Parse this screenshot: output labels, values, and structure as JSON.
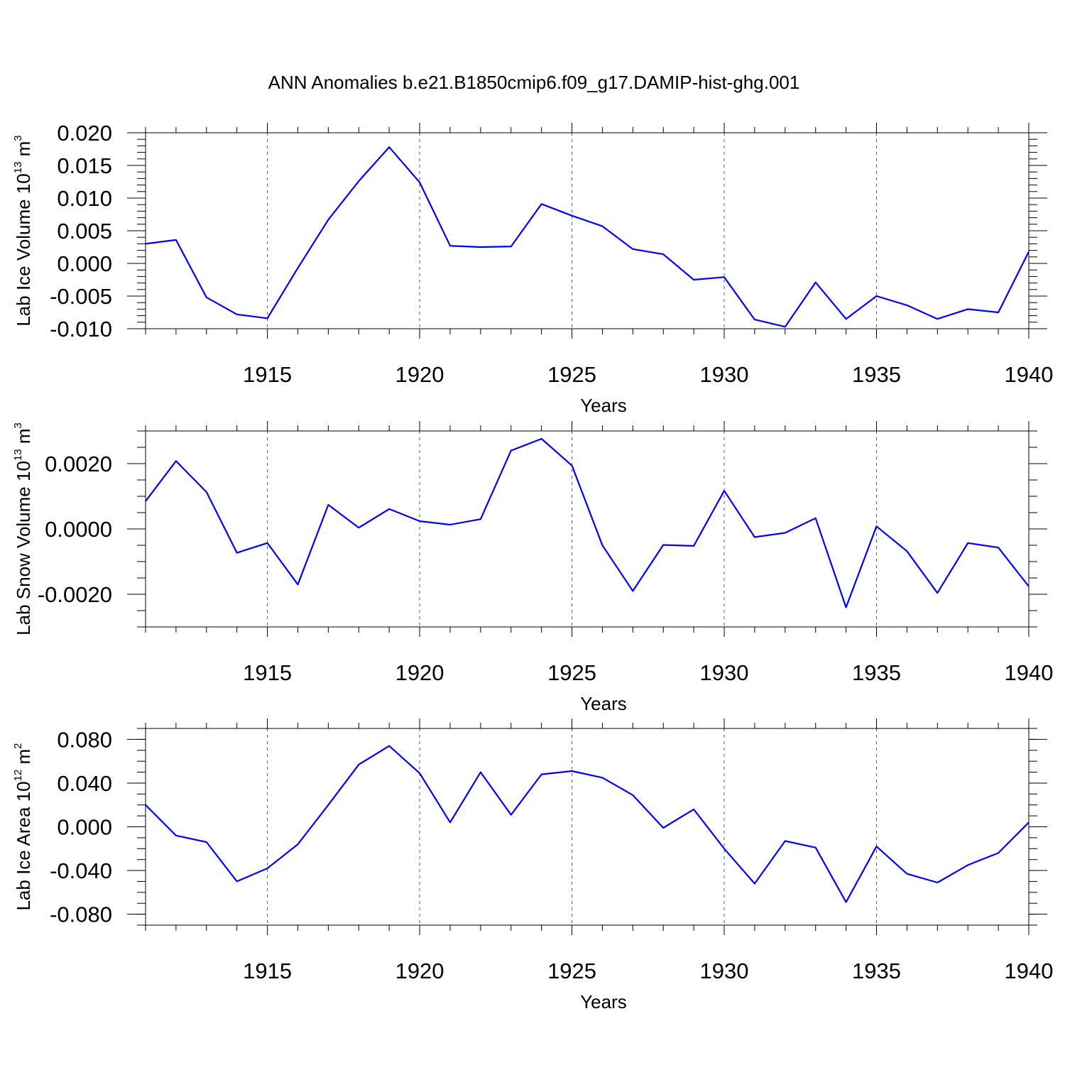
{
  "figure": {
    "title": "ANN Anomalies b.e21.B1850cmip6.f09_g17.DAMIP-hist-ghg.001"
  },
  "chart_data": [
    {
      "type": "line",
      "name": "lab-ice-volume",
      "ylabel": {
        "base": "Lab Ice Volume 10",
        "exp": "13",
        "unit": " m",
        "unit_exp": "3"
      },
      "xlabel": "Years",
      "xlim": [
        1911,
        1940
      ],
      "ylim": [
        -0.01,
        0.02
      ],
      "xticks": [
        1915,
        1920,
        1925,
        1930,
        1935,
        1940
      ],
      "xtick_labels": [
        "1915",
        "1920",
        "1925",
        "1930",
        "1935",
        "1940"
      ],
      "yticks": [
        -0.01,
        -0.005,
        0.0,
        0.005,
        0.01,
        0.015,
        0.02
      ],
      "ytick_labels": [
        "-0.010",
        "-0.005",
        "0.000",
        "0.005",
        "0.010",
        "0.015",
        "0.020"
      ],
      "yminor_step": 0.001,
      "line_color": "#0000ff",
      "x": [
        1911,
        1912,
        1913,
        1914,
        1915,
        1916,
        1917,
        1918,
        1919,
        1920,
        1921,
        1922,
        1923,
        1924,
        1925,
        1926,
        1927,
        1928,
        1929,
        1930,
        1931,
        1932,
        1933,
        1934,
        1935,
        1936,
        1937,
        1938,
        1939,
        1940
      ],
      "values": [
        0.003,
        0.0036,
        -0.0052,
        -0.0078,
        -0.0084,
        -0.0007,
        0.0067,
        0.0126,
        0.0178,
        0.0124,
        0.0027,
        0.0025,
        0.0026,
        0.0091,
        0.0073,
        0.0057,
        0.0022,
        0.0014,
        -0.0025,
        -0.0021,
        -0.0086,
        -0.0097,
        -0.0029,
        -0.0085,
        -0.005,
        -0.0064,
        -0.0085,
        -0.007,
        -0.0075,
        0.0018
      ]
    },
    {
      "type": "line",
      "name": "lab-snow-volume",
      "ylabel": {
        "base": "Lab Snow Volume 10",
        "exp": "13",
        "unit": " m",
        "unit_exp": "3"
      },
      "xlabel": "Years",
      "xlim": [
        1911,
        1940
      ],
      "ylim": [
        -0.003,
        0.003
      ],
      "xticks": [
        1915,
        1920,
        1925,
        1930,
        1935,
        1940
      ],
      "xtick_labels": [
        "1915",
        "1920",
        "1925",
        "1930",
        "1935",
        "1940"
      ],
      "yticks": [
        -0.002,
        0.0,
        0.002
      ],
      "ytick_labels": [
        "-0.0020",
        "0.0000",
        "0.0020"
      ],
      "yminor_step": 0.0005,
      "line_color": "#0000ff",
      "x": [
        1911,
        1912,
        1913,
        1914,
        1915,
        1916,
        1917,
        1918,
        1919,
        1920,
        1921,
        1922,
        1923,
        1924,
        1925,
        1926,
        1927,
        1928,
        1929,
        1930,
        1931,
        1932,
        1933,
        1934,
        1935,
        1936,
        1937,
        1938,
        1939,
        1940
      ],
      "values": [
        0.00085,
        0.00208,
        0.00113,
        -0.00073,
        -0.00043,
        -0.0017,
        0.00074,
        4e-05,
        0.00061,
        0.00024,
        0.00013,
        0.0003,
        0.0024,
        0.00276,
        0.00194,
        -0.0005,
        -0.0019,
        -0.00049,
        -0.00052,
        0.00117,
        -0.00025,
        -0.00012,
        0.00033,
        -0.0024,
        8e-05,
        -0.00068,
        -0.00196,
        -0.00043,
        -0.00057,
        -0.00176
      ]
    },
    {
      "type": "line",
      "name": "lab-ice-area",
      "ylabel": {
        "base": "Lab Ice Area 10",
        "exp": "12",
        "unit": " m",
        "unit_exp": "2"
      },
      "xlabel": "Years",
      "xlim": [
        1911,
        1940
      ],
      "ylim": [
        -0.09,
        0.09
      ],
      "xticks": [
        1915,
        1920,
        1925,
        1930,
        1935,
        1940
      ],
      "xtick_labels": [
        "1915",
        "1920",
        "1925",
        "1930",
        "1935",
        "1940"
      ],
      "yticks": [
        -0.08,
        -0.04,
        0.0,
        0.04,
        0.08
      ],
      "ytick_labels": [
        "-0.080",
        "-0.040",
        "0.000",
        "0.040",
        "0.080"
      ],
      "yminor_step": 0.01,
      "line_color": "#0000ff",
      "x": [
        1911,
        1912,
        1913,
        1914,
        1915,
        1916,
        1917,
        1918,
        1919,
        1920,
        1921,
        1922,
        1923,
        1924,
        1925,
        1926,
        1927,
        1928,
        1929,
        1930,
        1931,
        1932,
        1933,
        1934,
        1935,
        1936,
        1937,
        1938,
        1939,
        1940
      ],
      "values": [
        0.02,
        -0.008,
        -0.014,
        -0.05,
        -0.038,
        -0.016,
        0.02,
        0.057,
        0.074,
        0.049,
        0.004,
        0.05,
        0.011,
        0.048,
        0.051,
        0.045,
        0.029,
        -0.001,
        0.016,
        -0.02,
        -0.052,
        -0.013,
        -0.019,
        -0.069,
        -0.018,
        -0.043,
        -0.051,
        -0.035,
        -0.024,
        0.004
      ]
    }
  ]
}
